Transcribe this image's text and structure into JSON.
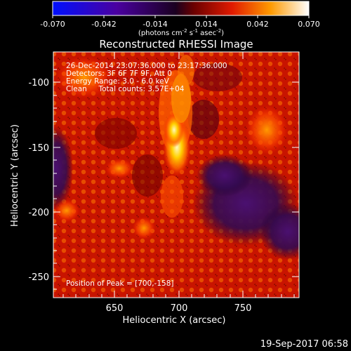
{
  "colorbar": {
    "ticks": [
      "-0.070",
      "-0.042",
      "-0.014",
      "0.014",
      "0.042",
      "0.070"
    ],
    "units_main": "(photons cm",
    "units_exp1": "-2",
    "units_mid": " s",
    "units_exp2": "-1",
    "units_mid2": " asec",
    "units_exp3": "-2",
    "units_end": ")"
  },
  "plot": {
    "title": "Reconstructed RHESSI Image",
    "xlabel": "Heliocentric X (arcsec)",
    "ylabel": "Heliocentric Y (arcsec)",
    "x_ticks": [
      "650",
      "700",
      "750"
    ],
    "y_ticks": [
      "-100",
      "-150",
      "-200",
      "-250"
    ],
    "info_lines": [
      "26-Dec-2014 23:07:36.000 to 23:17:36.000",
      "Detectors: 3F 6F 7F 9F, Att 0",
      "Energy Range: 3.0 - 6.0 keV",
      "Clean     Total counts: 3.57E+04"
    ],
    "peak_label": "Position of Peak = [700,-158]"
  },
  "footer": {
    "timestamp": "19-Sep-2017 06:58"
  },
  "colors": {
    "background": "#000000",
    "low": "#2a0060",
    "mid": "#d81800",
    "high": "#fff0a0"
  }
}
